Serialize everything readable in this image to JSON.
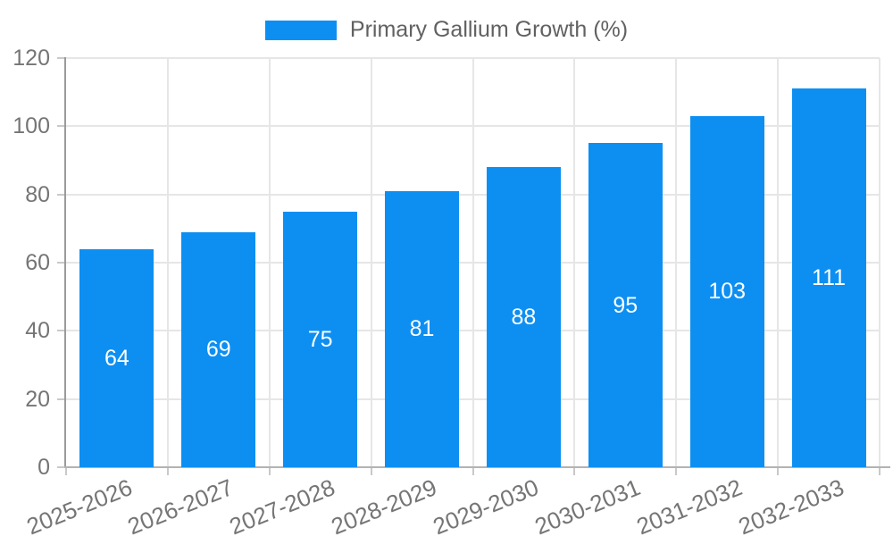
{
  "chart_data": {
    "type": "bar",
    "title": "Primary Gallium Growth (%)",
    "categories": [
      "2025-2026",
      "2026-2027",
      "2027-2028",
      "2028-2029",
      "2029-2030",
      "2030-2031",
      "2031-2032",
      "2032-2033"
    ],
    "values": [
      64,
      69,
      75,
      81,
      88,
      95,
      103,
      111
    ],
    "xlabel": "",
    "ylabel": "",
    "ylim": [
      0,
      120
    ],
    "ytick_step": 20,
    "yticks": [
      0,
      20,
      40,
      60,
      80,
      100,
      120
    ],
    "grid": true,
    "legend_position": "top-center",
    "value_labels_inside_bars": true,
    "colors": {
      "bar": "#0d8ff2",
      "bar_label": "#ffffff",
      "axis_text": "#757575",
      "legend_text": "#616161",
      "gridline": "#e6e6e6",
      "tick": "#c9c9c9",
      "y_axis_line": "#9a9a9a",
      "x_axis_line": "#b3b3b3"
    }
  }
}
